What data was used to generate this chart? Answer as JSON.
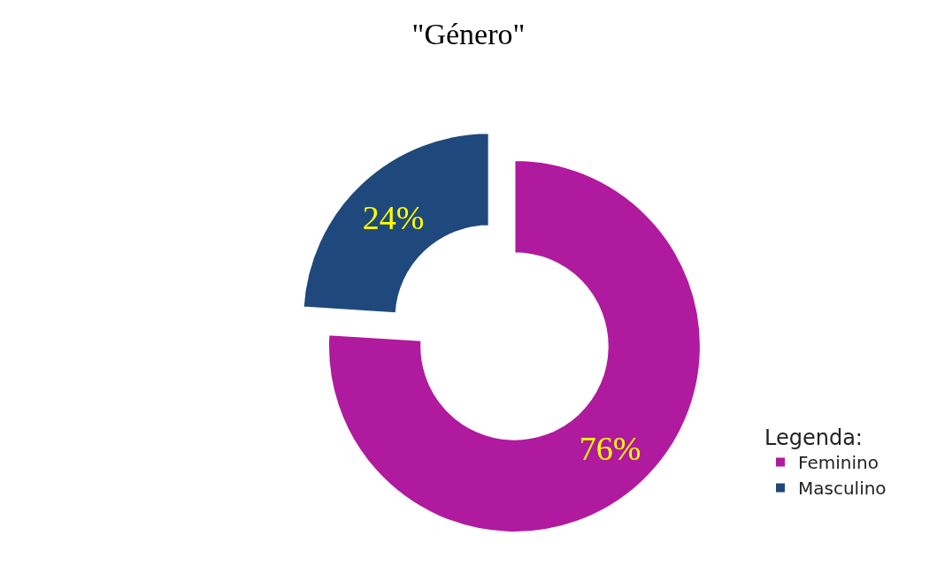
{
  "chart_data": {
    "type": "donut",
    "title": "\"Género\"",
    "legend_title": "Legenda:",
    "categories": [
      "Feminino",
      "Masculino"
    ],
    "values": [
      76,
      24
    ],
    "value_labels": [
      "76%",
      "24%"
    ],
    "colors": [
      "#b01a9e",
      "#1f497d"
    ],
    "legend": "right"
  }
}
